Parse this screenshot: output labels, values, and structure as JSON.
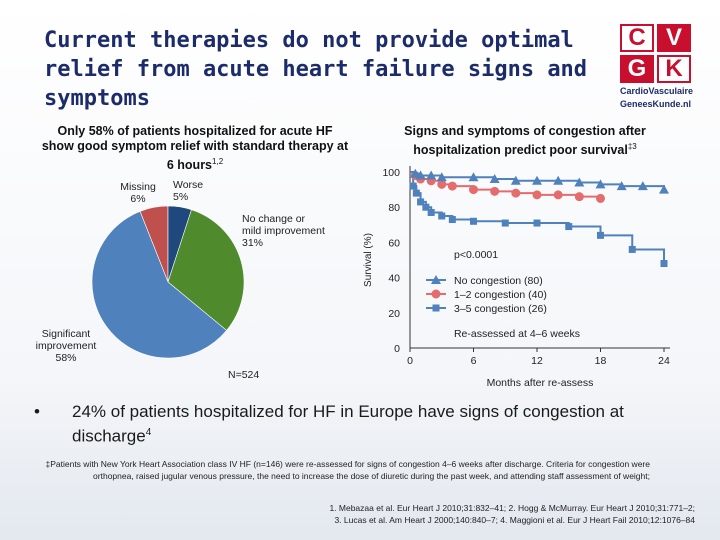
{
  "title": "Current therapies do not provide optimal relief from acute heart failure signs and symptoms",
  "logo": {
    "c": "C",
    "v": "V",
    "g": "G",
    "k": "K",
    "line1": "CardioVasculaire",
    "line2": "GeneesKunde.nl"
  },
  "left_header": "Only 58% of patients hospitalized for acute HF show good symptom relief with standard therapy at 6 hours",
  "left_header_sup": "1,2",
  "right_header": "Signs and symptoms of congestion after hospitalization predict poor survival",
  "right_header_sup": "‡3",
  "colors": {
    "title": "#1c2c6b",
    "missing": "#c0504d",
    "worse": "#1f497d",
    "no_change": "#4f8a2c",
    "significant": "#4f81bd"
  },
  "chart_data": [
    {
      "type": "pie",
      "slices": [
        {
          "label_lines": [
            "Missing",
            "6%"
          ],
          "value": 6
        },
        {
          "label_lines": [
            "Worse",
            "5%"
          ],
          "value": 5
        },
        {
          "label_lines": [
            "No change or",
            "mild improvement",
            "31%"
          ],
          "value": 31
        },
        {
          "label_lines": [
            "Significant",
            "improvement",
            "58%"
          ],
          "value": 58
        }
      ],
      "note": "N=524"
    },
    {
      "type": "line",
      "ylabel": "Survival (%)",
      "xlabel": "Months after re-assess",
      "xticks": [
        0,
        6,
        12,
        18,
        24
      ],
      "yticks": [
        0,
        20,
        40,
        60,
        80,
        100
      ],
      "xlim": [
        0,
        24
      ],
      "ylim": [
        0,
        100
      ],
      "annotation": "p<0.0001",
      "subtitle": "Re-assessed at 4–6 weeks",
      "series": [
        {
          "name": "No congestion (80)",
          "marker": "triangle",
          "color": "#4f81bd",
          "x": [
            0,
            0.5,
            1,
            2,
            3,
            6,
            8,
            10,
            12,
            14,
            16,
            18,
            20,
            22,
            24
          ],
          "y": [
            100,
            99,
            98,
            98,
            97,
            97,
            96,
            95,
            95,
            95,
            94,
            93,
            92,
            92,
            90
          ]
        },
        {
          "name": "1–2 congestion (40)",
          "marker": "circle",
          "color": "#e46c6c",
          "x": [
            0,
            0.5,
            1,
            2,
            3,
            4,
            6,
            8,
            10,
            12,
            14,
            16,
            18
          ],
          "y": [
            100,
            98,
            96,
            95,
            93,
            92,
            90,
            89,
            88,
            87,
            87,
            86,
            85
          ]
        },
        {
          "name": "3–5 congestion (26)",
          "marker": "square",
          "color": "#4f81bd",
          "x": [
            0,
            0.3,
            0.6,
            1,
            1.5,
            2,
            3,
            4,
            6,
            9,
            12,
            15,
            18,
            21,
            24
          ],
          "y": [
            100,
            92,
            88,
            83,
            80,
            77,
            75,
            73,
            72,
            71,
            71,
            69,
            64,
            56,
            48
          ]
        }
      ]
    }
  ],
  "bullet": {
    "text": "24% of patients hospitalized for HF in Europe have signs of congestion at discharge",
    "sup": "4"
  },
  "footnote": "‡Patients with New York Heart Association class IV HF (n=146) were re-assessed for signs of congestion 4–6 weeks after discharge. Criteria for congestion were orthopnea, raised jugular venous pressure, the need to increase the dose of diuretic during the past week, and attending staff assessment of weight;",
  "references": [
    "1. Mebazaa et al. Eur Heart J 2010;31:832–41; 2. Hogg & McMurray. Eur Heart J 2010;31:771–2;",
    "3. Lucas et al. Am Heart J 2000;140:840–7; 4. Maggioni et al. Eur J Heart Fail 2010;12:1076–84"
  ]
}
